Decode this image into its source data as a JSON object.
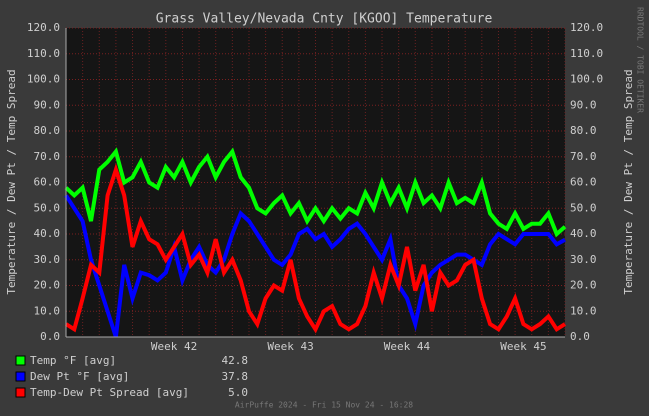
{
  "chart_data": {
    "type": "line",
    "title": "Grass Valley/Nevada Cnty [KGOO] Temperature",
    "y_label": "Temperature / Dew Pt / Temp Spread",
    "side_text": "RRDTOOL / TOBI OETIKER",
    "footer": "AirPuffe 2024 - Fri 15 Nov 24 - 16:28",
    "categories": [
      null,
      null,
      null,
      null,
      null,
      null,
      null,
      null,
      null,
      null,
      null,
      null,
      null,
      "Week 42",
      null,
      null,
      null,
      null,
      null,
      null,
      null,
      null,
      null,
      null,
      null,
      null,
      null,
      "Week 43",
      null,
      null,
      null,
      null,
      null,
      null,
      null,
      null,
      null,
      null,
      null,
      null,
      null,
      "Week 44",
      null,
      null,
      null,
      null,
      null,
      null,
      null,
      null,
      null,
      null,
      null,
      null,
      null,
      "Week 45",
      null,
      null,
      null,
      null,
      null
    ],
    "series": [
      {
        "name": "Temp °F [avg]",
        "avg_label": "42.8",
        "color": "#00ff00",
        "values": [
          58,
          55,
          58,
          45,
          65,
          68,
          72,
          60,
          62,
          68,
          60,
          58,
          66,
          62,
          68,
          60,
          66,
          70,
          62,
          68,
          72,
          62,
          58,
          50,
          48,
          52,
          55,
          48,
          52,
          45,
          50,
          45,
          50,
          46,
          50,
          48,
          56,
          50,
          60,
          52,
          58,
          50,
          60,
          52,
          55,
          50,
          60,
          52,
          54,
          52,
          60,
          48,
          44,
          42,
          48,
          42,
          44,
          44,
          48,
          40,
          42.8
        ]
      },
      {
        "name": "Dew Pt °F [avg]",
        "avg_label": "37.8",
        "color": "#0000ff",
        "values": [
          55,
          50,
          45,
          30,
          20,
          10,
          0,
          28,
          15,
          25,
          24,
          22,
          25,
          35,
          22,
          30,
          35,
          28,
          25,
          30,
          40,
          48,
          45,
          40,
          35,
          30,
          28,
          32,
          40,
          42,
          38,
          40,
          35,
          38,
          42,
          44,
          40,
          35,
          30,
          38,
          20,
          15,
          5,
          20,
          25,
          28,
          30,
          32,
          32,
          30,
          28,
          36,
          40,
          38,
          36,
          40,
          40,
          40,
          40,
          36,
          37.8
        ]
      },
      {
        "name": "Temp-Dew Pt Spread [avg]",
        "avg_label": "5.0",
        "color": "#ff0000",
        "values": [
          5,
          3,
          15,
          28,
          25,
          55,
          65,
          55,
          35,
          45,
          38,
          36,
          30,
          35,
          40,
          28,
          32,
          25,
          38,
          25,
          30,
          22,
          10,
          5,
          15,
          20,
          18,
          30,
          15,
          8,
          3,
          10,
          12,
          5,
          3,
          5,
          12,
          25,
          15,
          28,
          20,
          35,
          18,
          28,
          10,
          25,
          20,
          22,
          28,
          30,
          15,
          5,
          3,
          8,
          15,
          5,
          3,
          5,
          8,
          3,
          5
        ]
      }
    ],
    "ylim": [
      0,
      120
    ],
    "yticks": [
      {
        "value": 0,
        "label": "0.0"
      },
      {
        "value": 10,
        "label": "10.0"
      },
      {
        "value": 20,
        "label": "20.0"
      },
      {
        "value": 30,
        "label": "30.0"
      },
      {
        "value": 40,
        "label": "40.0"
      },
      {
        "value": 50,
        "label": "50.0"
      },
      {
        "value": 60,
        "label": "60.0"
      },
      {
        "value": 70,
        "label": "70.0"
      },
      {
        "value": 80,
        "label": "80.0"
      },
      {
        "value": 90,
        "label": "90.0"
      },
      {
        "value": 100,
        "label": "100.0"
      },
      {
        "value": 110,
        "label": "110.0"
      },
      {
        "value": 120,
        "label": "120.0"
      }
    ],
    "grid": true
  }
}
